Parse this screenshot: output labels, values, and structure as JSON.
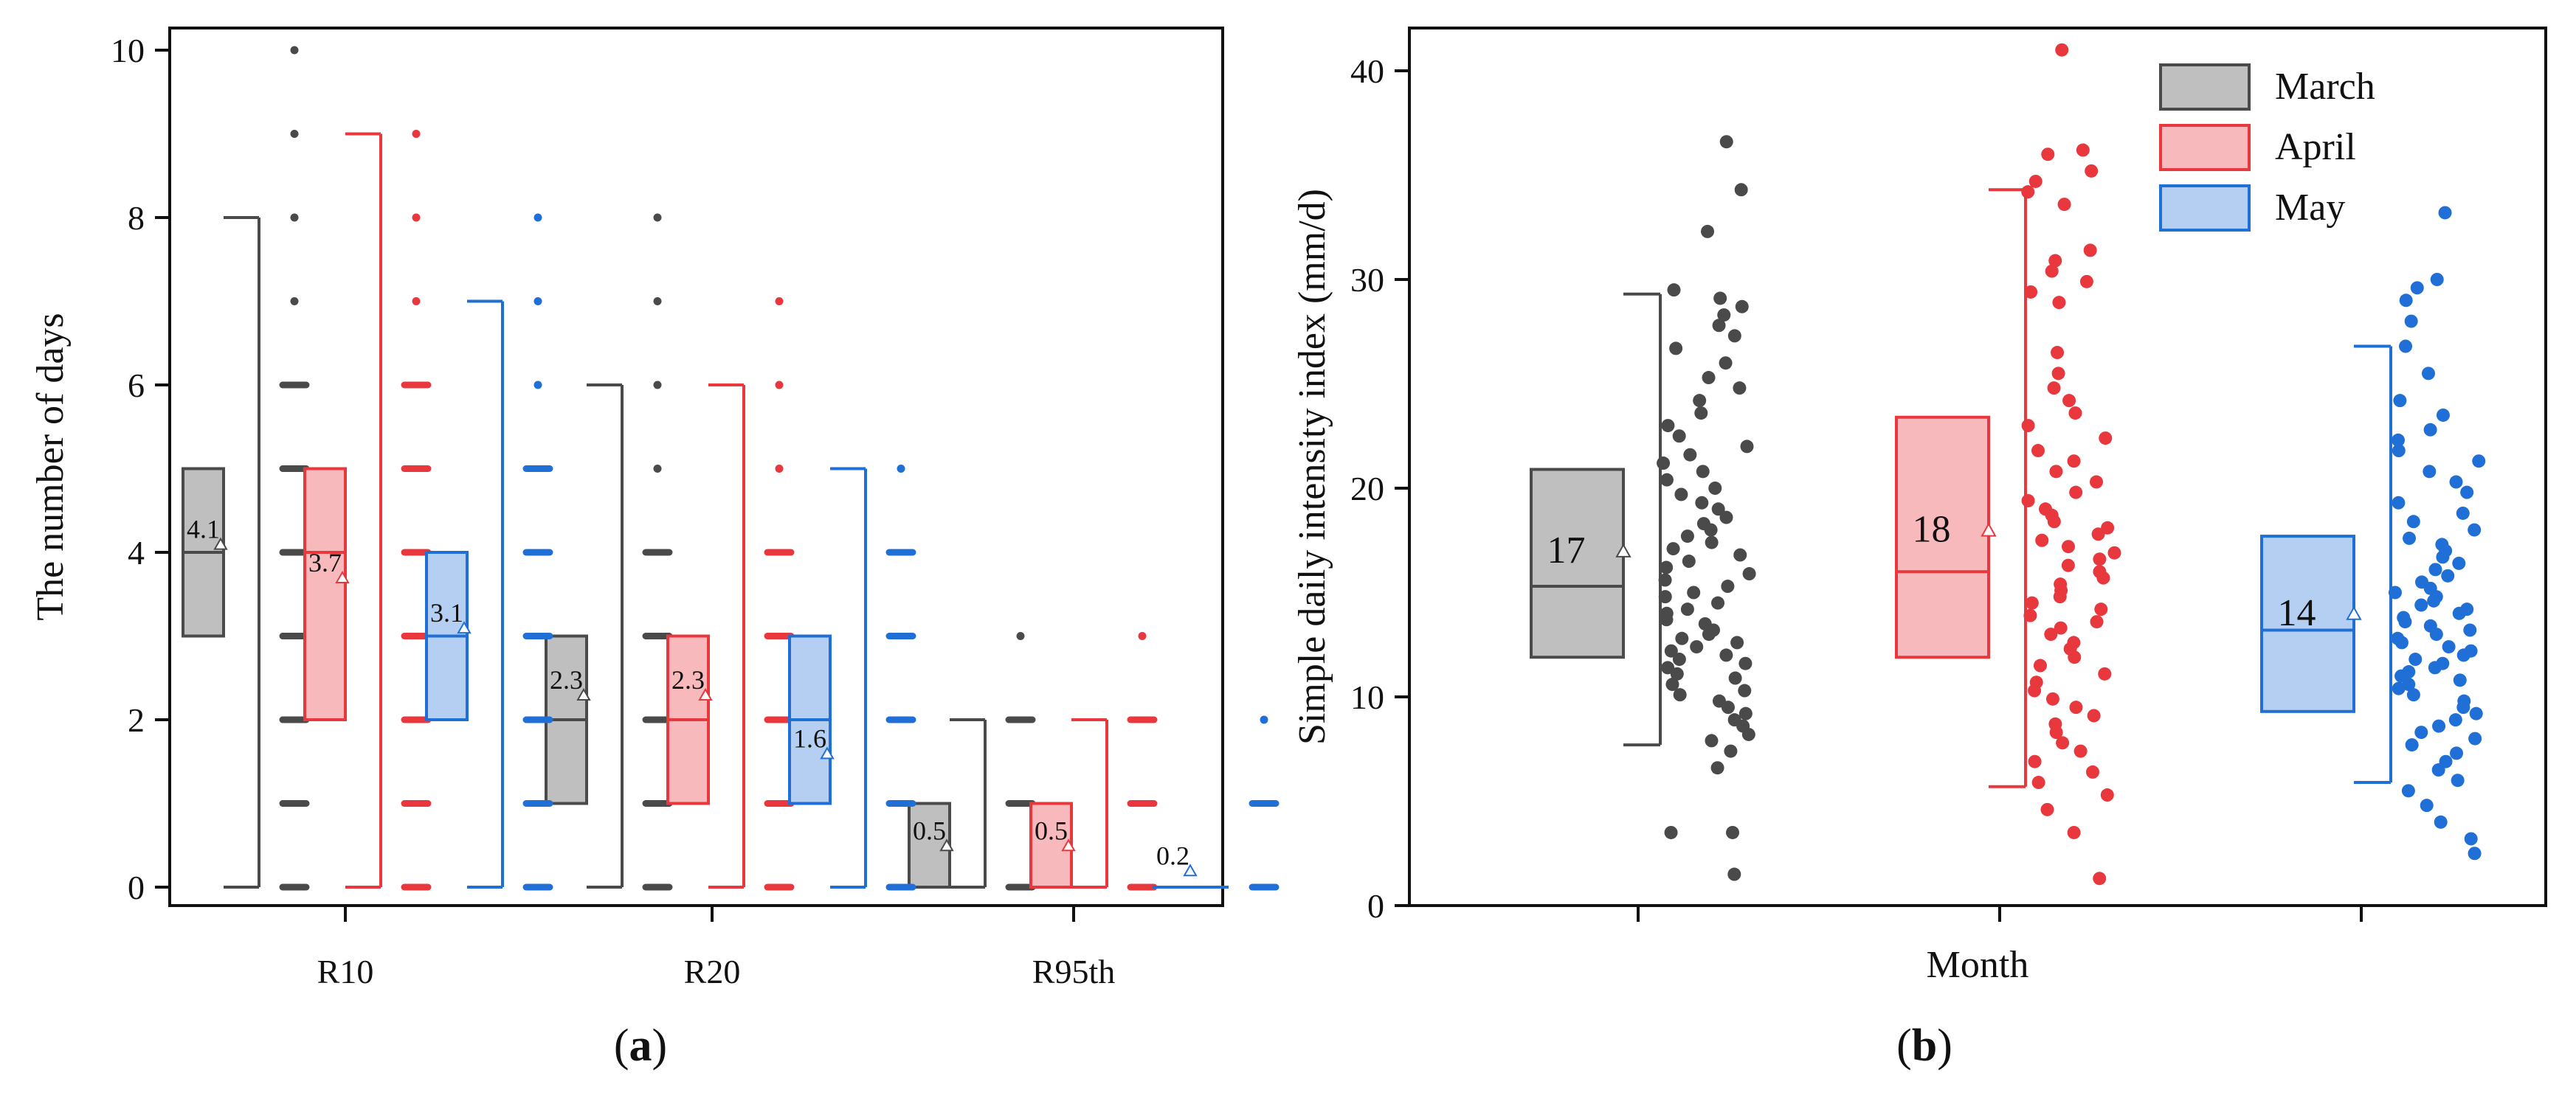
{
  "chart_data": [
    {
      "panel": "a",
      "type": "box-strip",
      "panel_label_parts": [
        "(",
        "a",
        ")"
      ],
      "ylabel": "The number of days",
      "xlabel": "",
      "ylim": [
        0,
        10
      ],
      "yticks": [
        "0",
        "2",
        "4",
        "6",
        "8",
        "10"
      ],
      "categories": [
        "R10",
        "R20",
        "R95th"
      ],
      "series": [
        {
          "name": "March",
          "color": "#4a4a4a",
          "fill": "#bfbfbf",
          "boxes": [
            {
              "category": "R10",
              "min": 0,
              "q1": 3,
              "median": 4,
              "q3": 5,
              "max": 8,
              "mean": 4.1,
              "mean_label": "4.1",
              "points": [
                0,
                1,
                2,
                3,
                4,
                5,
                6,
                7,
                8,
                9,
                10
              ]
            },
            {
              "category": "R20",
              "min": 0,
              "q1": 1,
              "median": 2,
              "q3": 3,
              "max": 6,
              "mean": 2.3,
              "mean_label": "2.3",
              "points": [
                0,
                1,
                2,
                3,
                4,
                5,
                6,
                7,
                8
              ]
            },
            {
              "category": "R95th",
              "min": 0,
              "q1": 0,
              "median": 0,
              "q3": 1,
              "max": 2,
              "mean": 0.5,
              "mean_label": "0.5",
              "points": [
                0,
                1,
                2,
                3
              ]
            }
          ]
        },
        {
          "name": "April",
          "color": "#e8383d",
          "fill": "#f7b9bb",
          "boxes": [
            {
              "category": "R10",
              "min": 0,
              "q1": 2,
              "median": 4,
              "q3": 5,
              "max": 9,
              "mean": 3.7,
              "mean_label": "3.7",
              "points": [
                0,
                1,
                2,
                3,
                4,
                5,
                6,
                7,
                8,
                9
              ]
            },
            {
              "category": "R20",
              "min": 0,
              "q1": 1,
              "median": 2,
              "q3": 3,
              "max": 6,
              "mean": 2.3,
              "mean_label": "2.3",
              "points": [
                0,
                1,
                2,
                3,
                4,
                5,
                6,
                7
              ]
            },
            {
              "category": "R95th",
              "min": 0,
              "q1": 0,
              "median": 0,
              "q3": 1,
              "max": 2,
              "mean": 0.5,
              "mean_label": "0.5",
              "points": [
                0,
                1,
                2,
                3
              ]
            }
          ]
        },
        {
          "name": "May",
          "color": "#1f6fd6",
          "fill": "#b4cff1",
          "boxes": [
            {
              "category": "R10",
              "min": 0,
              "q1": 2,
              "median": 3,
              "q3": 4,
              "max": 7,
              "mean": 3.1,
              "mean_label": "3.1",
              "points": [
                0,
                1,
                2,
                3,
                4,
                5,
                6,
                7,
                8
              ]
            },
            {
              "category": "R20",
              "min": 0,
              "q1": 1,
              "median": 2,
              "q3": 3,
              "max": 5,
              "mean": 1.6,
              "mean_label": "1.6",
              "points": [
                0,
                1,
                2,
                3,
                4,
                5
              ]
            },
            {
              "category": "R95th",
              "min": 0,
              "q1": 0,
              "median": 0,
              "q3": 0,
              "max": 0,
              "mean": 0.2,
              "mean_label": "0.2",
              "points": [
                0,
                1,
                2
              ]
            }
          ]
        }
      ]
    },
    {
      "panel": "b",
      "type": "box-strip",
      "panel_label_parts": [
        "(",
        "b",
        ")"
      ],
      "ylabel": "Simple daily intensity index (mm/d)",
      "xlabel": "Month",
      "ylim": [
        0,
        42
      ],
      "yticks": [
        "0",
        "10",
        "20",
        "30",
        "40"
      ],
      "legend": {
        "position": "top-right",
        "entries": [
          "March",
          "April",
          "May"
        ]
      },
      "series": [
        {
          "name": "March",
          "color": "#4a4a4a",
          "fill": "#bfbfbf",
          "min": 7.7,
          "q1": 11.9,
          "median": 15.3,
          "q3": 20.9,
          "max": 29.3,
          "mean": 17,
          "mean_label": "17",
          "points": [
            1.5,
            3.5,
            3.5,
            6.6,
            7.4,
            7.9,
            8.2,
            8.6,
            8.9,
            9.2,
            9.5,
            9.8,
            10.1,
            10.3,
            10.6,
            10.9,
            11.1,
            11.4,
            11.6,
            11.8,
            12.0,
            12.2,
            12.4,
            12.6,
            12.8,
            13.0,
            13.2,
            13.5,
            13.7,
            14.0,
            14.2,
            14.5,
            14.8,
            15.0,
            15.3,
            15.6,
            15.9,
            16.2,
            16.5,
            16.8,
            17.1,
            17.4,
            17.7,
            18.0,
            18.3,
            18.6,
            19.0,
            19.3,
            19.7,
            20.0,
            20.4,
            20.8,
            21.2,
            21.6,
            22.0,
            22.5,
            23.0,
            23.6,
            24.2,
            24.8,
            25.3,
            26.0,
            26.7,
            27.3,
            27.8,
            28.3,
            28.7,
            29.1,
            29.5,
            32.3,
            34.3,
            36.6
          ]
        },
        {
          "name": "April",
          "color": "#e8383d",
          "fill": "#f7b9bb",
          "min": 5.7,
          "q1": 11.9,
          "median": 16.0,
          "q3": 23.4,
          "max": 34.3,
          "mean": 18,
          "mean_label": "18",
          "points": [
            1.3,
            3.5,
            4.6,
            5.3,
            5.9,
            6.4,
            6.9,
            7.4,
            7.8,
            8.3,
            8.7,
            9.1,
            9.5,
            9.9,
            10.3,
            10.7,
            11.1,
            11.5,
            11.9,
            12.3,
            12.6,
            13.0,
            13.3,
            13.6,
            13.9,
            14.2,
            14.5,
            14.8,
            15.1,
            15.4,
            15.7,
            16.0,
            16.3,
            16.6,
            16.9,
            17.2,
            17.5,
            17.8,
            18.1,
            18.4,
            18.7,
            19.0,
            19.4,
            19.8,
            20.3,
            20.8,
            21.3,
            21.8,
            22.4,
            23.0,
            23.6,
            24.2,
            24.8,
            25.5,
            26.5,
            28.9,
            29.4,
            29.9,
            30.4,
            30.9,
            31.4,
            33.6,
            34.2,
            34.7,
            35.2,
            36.0,
            36.2,
            41.0
          ]
        },
        {
          "name": "May",
          "color": "#1f6fd6",
          "fill": "#b4cff1",
          "min": 5.9,
          "q1": 9.3,
          "median": 13.2,
          "q3": 17.7,
          "max": 26.8,
          "mean": 14,
          "mean_label": "14",
          "points": [
            2.5,
            3.2,
            4.0,
            4.8,
            5.5,
            6.0,
            6.5,
            6.9,
            7.3,
            7.7,
            8.0,
            8.3,
            8.6,
            8.9,
            9.2,
            9.5,
            9.8,
            10.1,
            10.4,
            10.6,
            10.8,
            11.0,
            11.2,
            11.4,
            11.6,
            11.8,
            12.0,
            12.2,
            12.4,
            12.6,
            12.8,
            13.0,
            13.2,
            13.4,
            13.6,
            13.8,
            14.0,
            14.2,
            14.4,
            14.6,
            14.8,
            15.0,
            15.2,
            15.5,
            15.8,
            16.1,
            16.4,
            16.7,
            17.0,
            17.3,
            17.6,
            18.0,
            18.4,
            18.8,
            19.3,
            19.8,
            20.3,
            20.8,
            21.3,
            21.8,
            22.3,
            22.8,
            23.5,
            24.2,
            25.5,
            26.8,
            28.0,
            29.0,
            29.6,
            30.0,
            33.2
          ]
        }
      ]
    }
  ]
}
